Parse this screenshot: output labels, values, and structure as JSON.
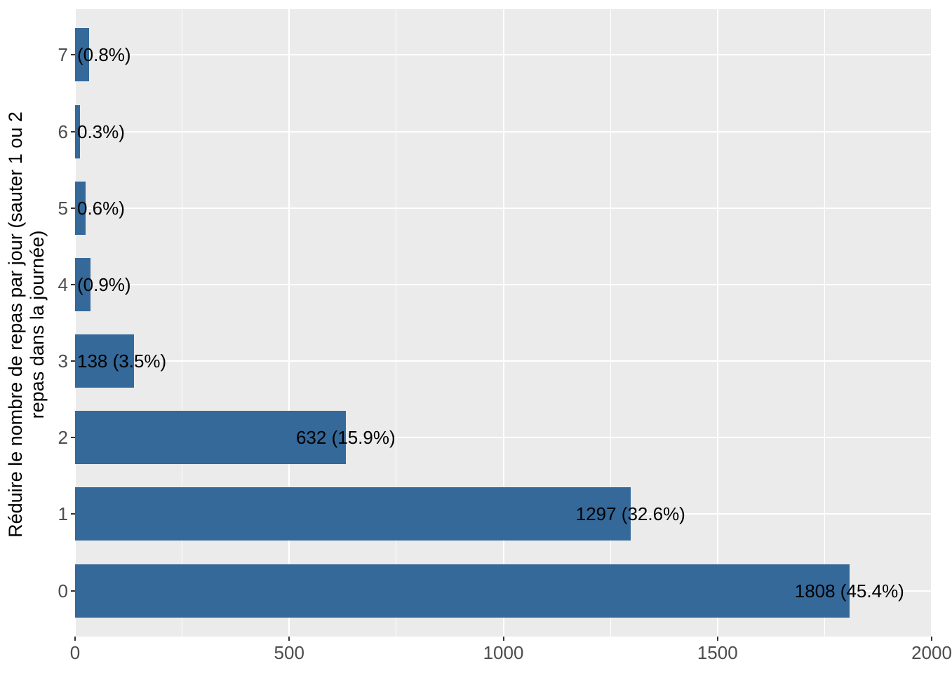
{
  "chart_data": {
    "type": "bar",
    "orientation": "horizontal",
    "title": "",
    "xlabel": "",
    "ylabel_lines": [
      "Réduire le nombre de repas par jour (sauter 1 ou 2",
      "repas dans la journée)"
    ],
    "categories": [
      "0",
      "1",
      "2",
      "3",
      "4",
      "5",
      "6",
      "7"
    ],
    "values": [
      1808,
      1297,
      632,
      138,
      36,
      24,
      12,
      32
    ],
    "bar_labels": [
      "1808 (45.4%)",
      "1297 (32.6%)",
      "632 (15.9%)",
      "138 (3.5%)",
      "(0.9%)",
      "0.6%)",
      "0.3%)",
      "(0.8%)"
    ],
    "percentages": [
      45.4,
      32.6,
      15.9,
      3.5,
      0.9,
      0.6,
      0.3,
      0.8
    ],
    "x_tick_labels": [
      "0",
      "500",
      "1000",
      "1500",
      "2000"
    ],
    "x_tick_values": [
      0,
      500,
      1000,
      1500,
      2000
    ],
    "x_minor_values": [
      250,
      750,
      1250,
      1750
    ],
    "xlim": [
      0,
      2000
    ],
    "grid": "on",
    "legend": "none",
    "colors": {
      "bar_fill": "#34699A",
      "panel_bg": "#EBEBEB",
      "grid": "#FFFFFF",
      "tick_mark": "#333333",
      "tick_label": "#4D4D4D",
      "bar_label_text": "#000000",
      "axis_title_text": "#000000",
      "page_bg": "#FFFFFF"
    }
  }
}
